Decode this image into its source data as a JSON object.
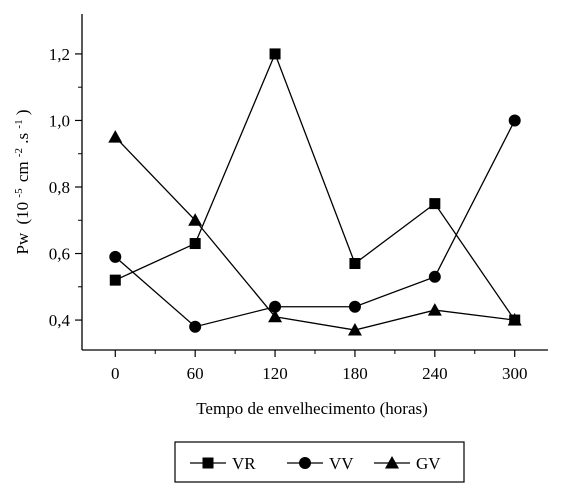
{
  "chart_data": {
    "type": "line",
    "title": "",
    "xlabel": "Tempo de envelhecimento (horas)",
    "ylabel": {
      "main": "Pw",
      "open": "(10",
      "exp1": "-5",
      "mid": "cm",
      "exp2": "-2",
      "dot": ".s",
      "exp3": "-1",
      "close": ")"
    },
    "x": [
      0,
      60,
      120,
      180,
      240,
      300
    ],
    "xticks": [
      "0",
      "60",
      "120",
      "180",
      "240",
      "300"
    ],
    "xlim": [
      -25,
      325
    ],
    "yticks": [
      "0,4",
      "0,6",
      "0,8",
      "1,0",
      "1,2"
    ],
    "ytick_values": [
      0.4,
      0.6,
      0.8,
      1.0,
      1.2
    ],
    "ylim": [
      0.31,
      1.32
    ],
    "grid": false,
    "legend_position": "bottom-center",
    "series": [
      {
        "name": "VR",
        "marker": "square",
        "values": [
          0.52,
          0.63,
          1.2,
          0.57,
          0.75,
          0.4
        ]
      },
      {
        "name": "VV",
        "marker": "circle",
        "values": [
          0.59,
          0.38,
          0.44,
          0.44,
          0.53,
          1.0
        ]
      },
      {
        "name": "GV",
        "marker": "triangle",
        "values": [
          0.95,
          0.7,
          0.41,
          0.37,
          0.43,
          0.4
        ]
      }
    ]
  }
}
